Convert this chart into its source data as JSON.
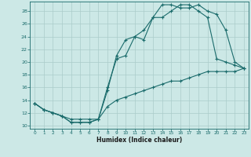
{
  "xlabel": "Humidex (Indice chaleur)",
  "background_color": "#cce8e6",
  "grid_color": "#aaccca",
  "line_color": "#1a6b6b",
  "xlim": [
    -0.5,
    23.5
  ],
  "ylim": [
    9.5,
    29.5
  ],
  "xticks": [
    0,
    1,
    2,
    3,
    4,
    5,
    6,
    7,
    8,
    9,
    10,
    11,
    12,
    13,
    14,
    15,
    16,
    17,
    18,
    19,
    20,
    21,
    22,
    23
  ],
  "yticks": [
    10,
    12,
    14,
    16,
    18,
    20,
    22,
    24,
    26,
    28
  ],
  "curve1_x": [
    0,
    1,
    2,
    3,
    4,
    5,
    6,
    7,
    8,
    9,
    10,
    11,
    12,
    13,
    14,
    15,
    16,
    17,
    18,
    19,
    20,
    21,
    22,
    23
  ],
  "curve1_y": [
    13.5,
    12.5,
    12,
    11.5,
    10.5,
    10.5,
    10.5,
    11,
    16,
    20.5,
    21,
    24,
    23.5,
    27,
    29,
    29,
    28.5,
    28.5,
    29,
    28,
    27.5,
    25,
    20,
    19
  ],
  "curve2_x": [
    0,
    1,
    2,
    3,
    4,
    5,
    6,
    7,
    8,
    9,
    10,
    11,
    12,
    13,
    14,
    15,
    16,
    17,
    18,
    19,
    20,
    21,
    22,
    23
  ],
  "curve2_y": [
    13.5,
    12.5,
    12,
    11.5,
    10.5,
    10.5,
    10.5,
    11,
    15.5,
    21,
    23.5,
    24,
    25,
    27,
    27,
    28,
    29,
    29,
    28,
    27,
    20.5,
    20,
    19.5,
    19
  ],
  "curve3_x": [
    0,
    1,
    2,
    3,
    4,
    5,
    6,
    7,
    8,
    9,
    10,
    11,
    12,
    13,
    14,
    15,
    16,
    17,
    18,
    19,
    20,
    21,
    22,
    23
  ],
  "curve3_y": [
    13.5,
    12.5,
    12,
    11.5,
    11,
    11,
    11,
    11,
    13,
    14,
    14.5,
    15,
    15.5,
    16,
    16.5,
    17,
    17,
    17.5,
    18,
    18.5,
    18.5,
    18.5,
    18.5,
    19
  ]
}
